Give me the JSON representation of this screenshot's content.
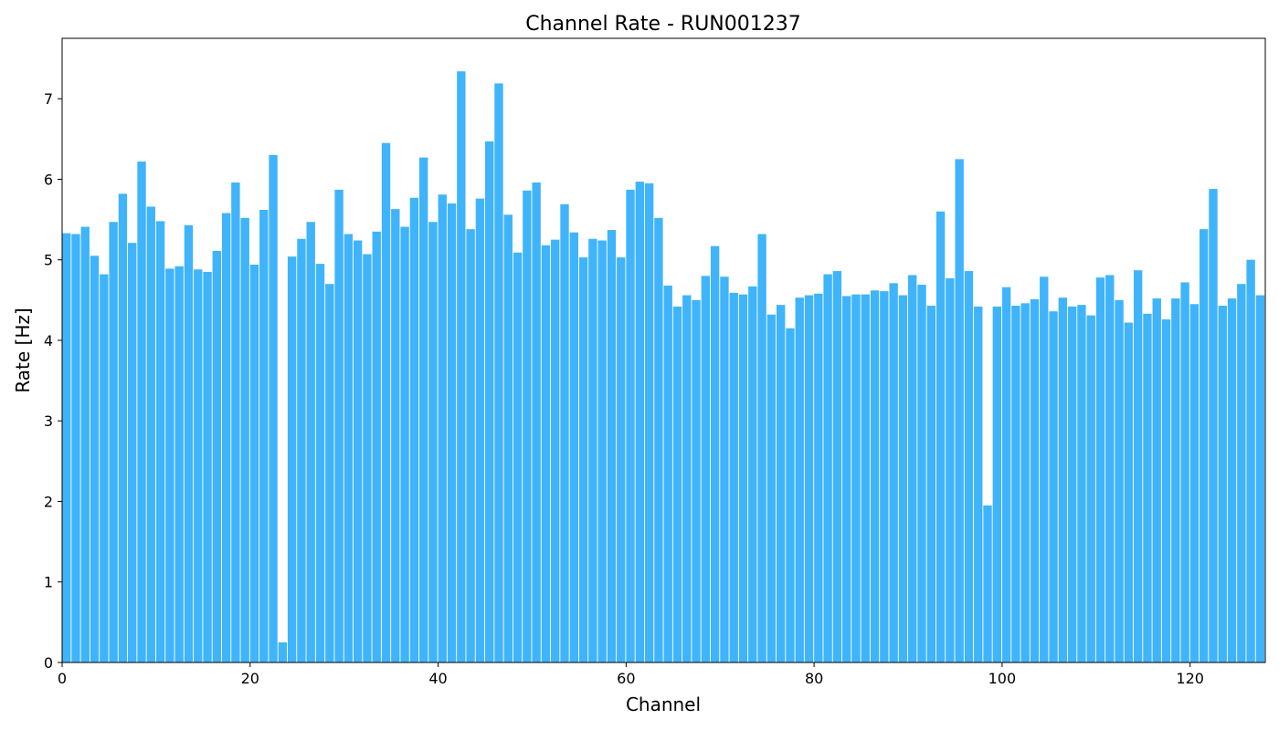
{
  "chart_data": {
    "type": "bar",
    "title": "Channel Rate - RUN001237",
    "xlabel": "Channel",
    "ylabel": "Rate [Hz]",
    "xlim": [
      0,
      128
    ],
    "ylim": [
      0,
      7.75
    ],
    "xticks": [
      0,
      20,
      40,
      60,
      80,
      100,
      120
    ],
    "yticks": [
      0,
      1,
      2,
      3,
      4,
      5,
      6,
      7
    ],
    "grid": false,
    "bar_color": "#40b4fa",
    "categories": [
      0,
      1,
      2,
      3,
      4,
      5,
      6,
      7,
      8,
      9,
      10,
      11,
      12,
      13,
      14,
      15,
      16,
      17,
      18,
      19,
      20,
      21,
      22,
      23,
      24,
      25,
      26,
      27,
      28,
      29,
      30,
      31,
      32,
      33,
      34,
      35,
      36,
      37,
      38,
      39,
      40,
      41,
      42,
      43,
      44,
      45,
      46,
      47,
      48,
      49,
      50,
      51,
      52,
      53,
      54,
      55,
      56,
      57,
      58,
      59,
      60,
      61,
      62,
      63,
      64,
      65,
      66,
      67,
      68,
      69,
      70,
      71,
      72,
      73,
      74,
      75,
      76,
      77,
      78,
      79,
      80,
      81,
      82,
      83,
      84,
      85,
      86,
      87,
      88,
      89,
      90,
      91,
      92,
      93,
      94,
      95,
      96,
      97,
      98,
      99,
      100,
      101,
      102,
      103,
      104,
      105,
      106,
      107,
      108,
      109,
      110,
      111,
      112,
      113,
      114,
      115,
      116,
      117,
      118,
      119,
      120,
      121,
      122,
      123,
      124,
      125,
      126,
      127
    ],
    "values": [
      5.33,
      5.32,
      5.41,
      5.05,
      4.82,
      5.47,
      5.82,
      5.21,
      6.22,
      5.66,
      5.48,
      4.89,
      4.92,
      5.43,
      4.88,
      4.85,
      5.11,
      5.58,
      5.96,
      5.52,
      4.94,
      5.62,
      6.3,
      0.25,
      5.04,
      5.26,
      5.47,
      4.95,
      4.7,
      5.87,
      5.32,
      5.24,
      5.07,
      5.35,
      6.45,
      5.63,
      5.41,
      5.77,
      6.27,
      5.47,
      5.81,
      5.7,
      7.34,
      5.38,
      5.76,
      6.47,
      7.19,
      5.56,
      5.09,
      5.86,
      5.96,
      5.18,
      5.25,
      5.69,
      5.34,
      5.03,
      5.26,
      5.24,
      5.37,
      5.03,
      5.87,
      5.97,
      5.95,
      5.52,
      4.68,
      4.42,
      4.56,
      4.5,
      4.8,
      5.17,
      4.79,
      4.59,
      4.57,
      4.67,
      5.32,
      4.32,
      4.44,
      4.15,
      4.53,
      4.56,
      4.58,
      4.82,
      4.86,
      4.55,
      4.57,
      4.57,
      4.62,
      4.61,
      4.71,
      4.56,
      4.81,
      4.69,
      4.43,
      5.6,
      4.77,
      6.25,
      4.86,
      4.42,
      1.95,
      4.42,
      4.66,
      4.43,
      4.46,
      4.51,
      4.79,
      4.36,
      4.53,
      4.42,
      4.44,
      4.31,
      4.78,
      4.81,
      4.5,
      4.22,
      4.87,
      4.33,
      4.52,
      4.26,
      4.52,
      4.72,
      4.45,
      5.38,
      5.88,
      4.43,
      4.52,
      4.7,
      5.0,
      4.56
    ]
  }
}
